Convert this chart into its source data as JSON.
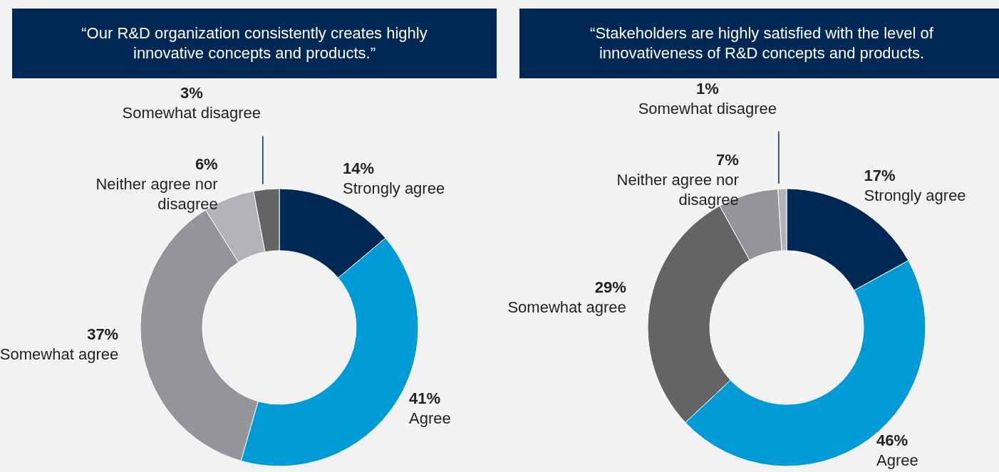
{
  "chart_data": [
    {
      "type": "donut",
      "title": "“Our R&D organization consistently creates highly innovative concepts and products.”",
      "categories": [
        "Strongly agree",
        "Agree",
        "Somewhat agree",
        "Neither agree nor disagree",
        "Somewhat disagree"
      ],
      "values": [
        14,
        41,
        37,
        6,
        3
      ],
      "value_labels": [
        "14%",
        "41%",
        "37%",
        "6%",
        "3%"
      ],
      "colors": [
        "#002855",
        "#009ad6",
        "#939598",
        "#b1b3b6",
        "#636466"
      ]
    },
    {
      "type": "donut",
      "title": "“Stakeholders are highly satisfied with the level of innovativeness of R&D concepts and products.",
      "categories": [
        "Strongly agree",
        "Agree",
        "Somewhat agree",
        "Neither agree nor disagree",
        "Somewhat disagree"
      ],
      "values": [
        17,
        46,
        29,
        7,
        1
      ],
      "value_labels": [
        "17%",
        "46%",
        "29%",
        "7%",
        "1%"
      ],
      "colors": [
        "#002855",
        "#009ad6",
        "#636466",
        "#939598",
        "#b1b3b6"
      ]
    }
  ]
}
